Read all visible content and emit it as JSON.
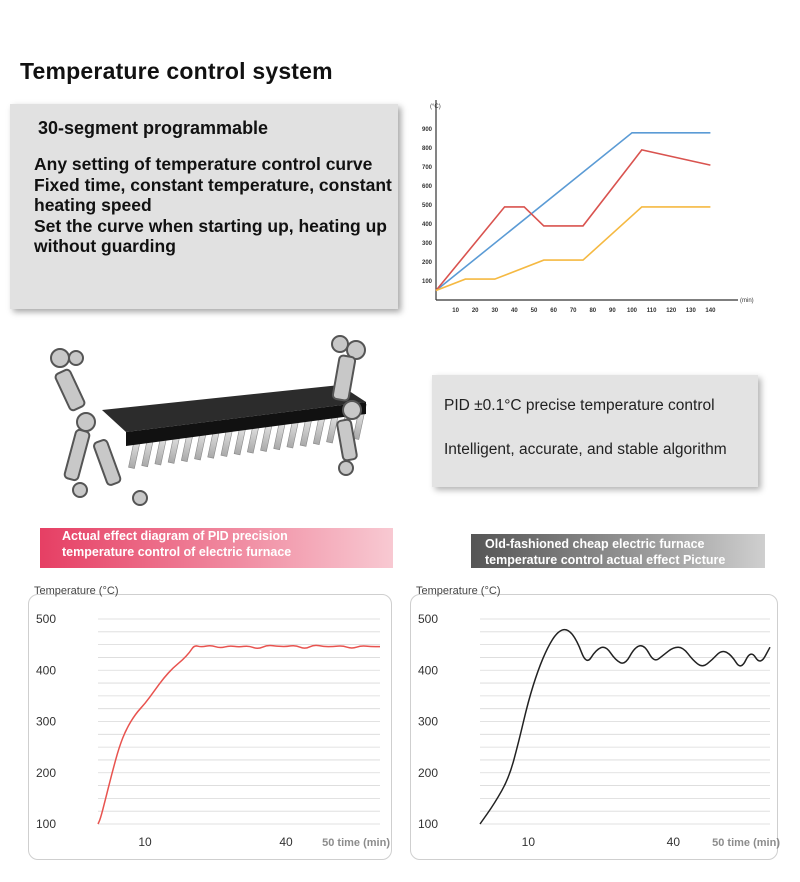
{
  "page": {
    "title": "Temperature control system",
    "features": {
      "heading": "30-segment programmable",
      "lines": [
        "Any setting of temperature control curve",
        "Fixed time, constant temperature, constant heating speed",
        "Set the curve when starting up, heating up without guarding"
      ]
    },
    "pid_card": {
      "line1": "PID ±0.1°C precise temperature control",
      "line2": "Intelligent, accurate, and stable algorithm"
    },
    "pid_banner": "Actual effect diagram of PID precision temperature control of electric furnace",
    "old_banner": "Old-fashioned cheap electric furnace temperature control actual effect Picture"
  },
  "colors": {
    "blue": "#5b9bd5",
    "red": "#d9534f",
    "orange": "#f5b942",
    "pid_line": "#e8534f",
    "old_line": "#222222"
  },
  "chart_data": [
    {
      "id": "program-curves",
      "type": "line",
      "title": "",
      "xlabel": "(min)",
      "ylabel": "(°C)",
      "xlim": [
        0,
        150
      ],
      "ylim": [
        0,
        1000
      ],
      "x_ticks": [
        10,
        20,
        30,
        40,
        50,
        60,
        70,
        80,
        90,
        100,
        110,
        120,
        130,
        140
      ],
      "y_ticks": [
        100,
        200,
        300,
        400,
        500,
        600,
        700,
        800,
        900
      ],
      "series": [
        {
          "name": "blue",
          "color": "#5b9bd5",
          "x": [
            0,
            100,
            140
          ],
          "y": [
            50,
            880,
            880
          ]
        },
        {
          "name": "red",
          "color": "#d9534f",
          "x": [
            0,
            35,
            45,
            55,
            75,
            105,
            140
          ],
          "y": [
            50,
            490,
            490,
            390,
            390,
            790,
            710
          ]
        },
        {
          "name": "orange",
          "color": "#f5b942",
          "x": [
            0,
            15,
            30,
            55,
            75,
            105,
            140
          ],
          "y": [
            50,
            110,
            110,
            210,
            210,
            490,
            490
          ]
        }
      ]
    },
    {
      "id": "pid-effect",
      "type": "line",
      "title": "",
      "ylabel": "Temperature (°C)",
      "xlabel": "50 time (min)",
      "xlim": [
        0,
        60
      ],
      "ylim": [
        100,
        500
      ],
      "x_ticks": [
        10,
        40
      ],
      "y_ticks": [
        100,
        200,
        300,
        400,
        500
      ],
      "series": [
        {
          "name": "PID",
          "color": "#e8534f",
          "x": [
            0,
            0.5,
            1.5,
            3,
            4.5,
            6,
            8,
            10,
            12,
            14,
            16,
            18,
            19.5,
            20.5,
            22,
            24,
            26,
            28,
            30,
            32,
            34,
            36,
            38,
            40,
            42,
            44,
            46,
            48,
            50,
            52,
            54,
            56,
            58,
            60
          ],
          "y": [
            100,
            110,
            145,
            200,
            250,
            285,
            315,
            335,
            360,
            385,
            405,
            420,
            435,
            449,
            445,
            449,
            443,
            448,
            445,
            448,
            441,
            449,
            447,
            446,
            449,
            441,
            450,
            446,
            446,
            448,
            442,
            448,
            446,
            446
          ]
        }
      ]
    },
    {
      "id": "old-effect",
      "type": "line",
      "title": "",
      "ylabel": "Temperature (°C)",
      "xlabel": "50 time (min)",
      "xlim": [
        0,
        60
      ],
      "ylim": [
        100,
        500
      ],
      "x_ticks": [
        10,
        40
      ],
      "y_ticks": [
        100,
        200,
        300,
        400,
        500
      ],
      "series": [
        {
          "name": "Old furnace",
          "color": "#222222",
          "x": [
            0,
            3,
            6,
            8,
            10,
            12,
            14,
            16,
            18,
            20,
            22,
            24,
            26,
            28,
            30,
            32,
            34,
            36,
            38,
            40,
            42,
            44,
            46,
            48,
            50,
            52,
            54,
            56,
            58,
            60
          ],
          "y": [
            100,
            140,
            190,
            260,
            340,
            400,
            445,
            475,
            482,
            460,
            410,
            440,
            448,
            420,
            410,
            445,
            450,
            415,
            430,
            445,
            445,
            420,
            405,
            420,
            440,
            430,
            400,
            440,
            410,
            445
          ]
        }
      ]
    }
  ]
}
